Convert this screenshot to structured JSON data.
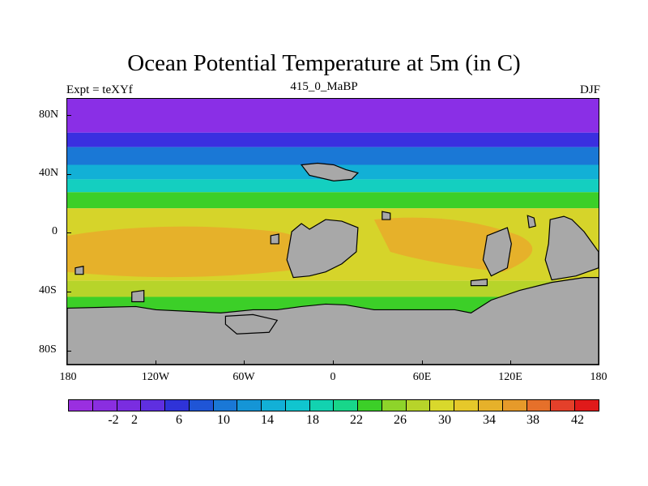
{
  "title": "Ocean Potential Temperature at 5m (in C)",
  "left_label": "Expt = teXYf",
  "center_label": "415_0_MaBP",
  "right_label": "DJF",
  "y_ticks": [
    "80N",
    "40N",
    "0",
    "40S",
    "80S"
  ],
  "x_ticks": [
    "180",
    "120W",
    "60W",
    "0",
    "60E",
    "120E",
    "180"
  ],
  "colorbar": {
    "colors": [
      "#9a2fe0",
      "#8a2ee0",
      "#7a2de0",
      "#5f2fe0",
      "#2f33d8",
      "#1f55d6",
      "#1a78d6",
      "#1595d6",
      "#12b0d6",
      "#10c5cf",
      "#12d2b0",
      "#18d68a",
      "#3ccf28",
      "#8ed42a",
      "#b7d42a",
      "#d9d82c",
      "#e6c82a",
      "#e6b12a",
      "#e69a2a",
      "#e6702a",
      "#e4402a",
      "#e01a1a"
    ],
    "labels": [
      "-2",
      "2",
      "6",
      "10",
      "14",
      "18",
      "22",
      "26",
      "30",
      "34",
      "38",
      "42"
    ]
  },
  "colors": {
    "land": "#a8a8a8",
    "polar": "#8a2fe6",
    "deep_blue": "#3a2fe0",
    "mid_blue": "#1a78d6",
    "cyan": "#12b0d6",
    "teal": "#14cfc0",
    "green": "#3ccf28",
    "yellow_green": "#b7d42a",
    "yellow": "#d6d42a",
    "orange": "#e6b12a"
  }
}
